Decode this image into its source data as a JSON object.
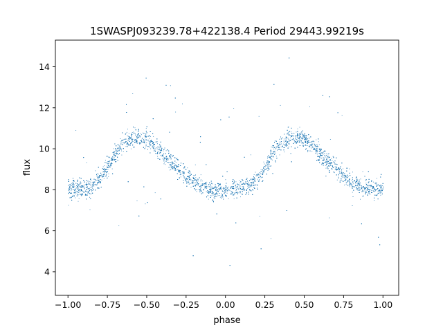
{
  "chart_data": {
    "type": "scatter",
    "title": "1SWASPJ093239.78+422138.4 Period 29443.99219s",
    "xlabel": "phase",
    "ylabel": "flux",
    "xlim": [
      -1.08,
      1.1
    ],
    "ylim": [
      2.85,
      15.3
    ],
    "xticks": [
      -1.0,
      -0.75,
      -0.5,
      -0.25,
      0.0,
      0.25,
      0.5,
      0.75,
      1.0
    ],
    "xtick_labels": [
      "−1.00",
      "−0.75",
      "−0.50",
      "−0.25",
      "0.00",
      "0.25",
      "0.50",
      "0.75",
      "1.00"
    ],
    "yticks": [
      4,
      6,
      8,
      10,
      12,
      14
    ],
    "ytick_labels": [
      "4",
      "6",
      "8",
      "10",
      "12",
      "14"
    ],
    "grid": false,
    "marker_color": "#1f77b4",
    "series": [
      {
        "x": [
          -1.0,
          -0.95,
          -0.9,
          -0.85,
          -0.8,
          -0.75,
          -0.7,
          -0.65,
          -0.6,
          -0.55,
          -0.5,
          -0.45,
          -0.4,
          -0.35,
          -0.3,
          -0.25,
          -0.2,
          -0.15,
          -0.1,
          -0.05,
          0.0,
          0.05,
          0.1,
          0.15,
          0.2,
          0.25,
          0.3,
          0.35,
          0.4,
          0.45,
          0.5,
          0.55,
          0.6,
          0.65,
          0.7,
          0.75,
          0.8,
          0.85,
          0.9,
          0.95,
          1.0
        ],
        "y": [
          8.1,
          8.1,
          8.1,
          8.2,
          8.5,
          9.1,
          9.8,
          10.3,
          10.5,
          10.6,
          10.5,
          10.2,
          9.8,
          9.4,
          9.0,
          8.7,
          8.4,
          8.2,
          8.0,
          7.95,
          8.0,
          8.05,
          8.1,
          8.2,
          8.5,
          9.1,
          9.8,
          10.3,
          10.5,
          10.6,
          10.5,
          10.2,
          9.8,
          9.4,
          9.0,
          8.7,
          8.4,
          8.2,
          8.1,
          8.05,
          8.1
        ],
        "scatter_std": 0.45
      }
    ]
  }
}
